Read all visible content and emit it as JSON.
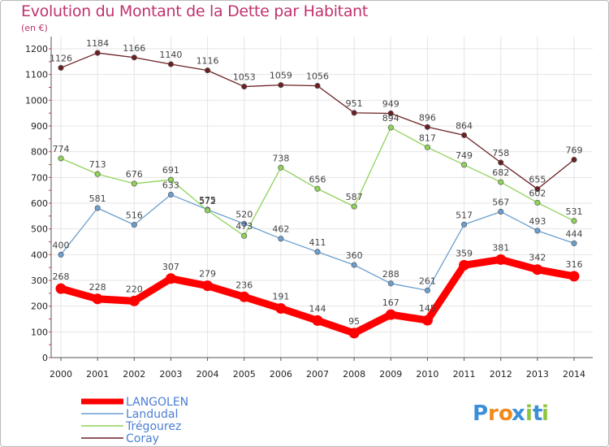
{
  "chart_data": {
    "type": "line",
    "title": "Evolution du Montant de la Dette par Habitant",
    "subtitle": "(en €)",
    "x": [
      "2000",
      "2001",
      "2002",
      "2003",
      "2004",
      "2005",
      "2006",
      "2007",
      "2008",
      "2009",
      "2010",
      "2011",
      "2012",
      "2013",
      "2014"
    ],
    "yticks": [
      0,
      100,
      200,
      300,
      400,
      500,
      600,
      700,
      800,
      900,
      1000,
      1100,
      1200
    ],
    "ylim": [
      0,
      1200
    ],
    "grid": true,
    "legend_position": "bottom-left",
    "series": [
      {
        "name": "LANGOLEN",
        "color": "#ff0000",
        "emphasis": true,
        "values": [
          268,
          228,
          220,
          307,
          279,
          236,
          191,
          144,
          95,
          167,
          145,
          359,
          381,
          342,
          316
        ]
      },
      {
        "name": "Landudal",
        "color": "#6b9fcf",
        "values": [
          400,
          581,
          516,
          633,
          575,
          520,
          462,
          411,
          360,
          288,
          261,
          517,
          567,
          493,
          444
        ]
      },
      {
        "name": "Trégourez",
        "color": "#8fd35a",
        "values": [
          774,
          713,
          676,
          691,
          572,
          473,
          738,
          656,
          587,
          894,
          817,
          749,
          682,
          602,
          531
        ]
      },
      {
        "name": "Coray",
        "color": "#6b1f23",
        "values": [
          1126,
          1184,
          1166,
          1140,
          1116,
          1053,
          1059,
          1056,
          951,
          949,
          896,
          864,
          758,
          655,
          769
        ]
      }
    ]
  },
  "logo": {
    "letters": [
      "P",
      "r",
      "o",
      "x",
      "i",
      "t",
      "i"
    ],
    "colors": [
      "#3b8fd9",
      "#f08a1d",
      "#f08a1d",
      "#3b8fd9",
      "#8cc63f",
      "#3b8fd9",
      "#8cc63f"
    ]
  }
}
